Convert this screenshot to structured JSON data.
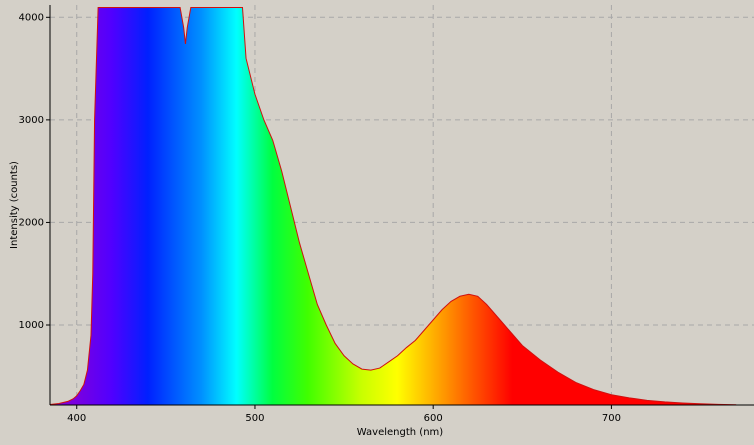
{
  "chart_data": {
    "type": "area",
    "x_label": "Wavelength (nm)",
    "y_label": "Intensity (counts)",
    "x": [
      385,
      390,
      395,
      398,
      400,
      402,
      404,
      406,
      408,
      409,
      410,
      412,
      420,
      440,
      455,
      458,
      460,
      461,
      462,
      464,
      470,
      480,
      490,
      493,
      495,
      500,
      505,
      510,
      515,
      520,
      525,
      530,
      535,
      540,
      545,
      550,
      555,
      560,
      565,
      570,
      575,
      580,
      585,
      590,
      595,
      600,
      605,
      610,
      615,
      620,
      625,
      630,
      635,
      640,
      645,
      650,
      660,
      670,
      680,
      690,
      700,
      710,
      720,
      730,
      740,
      750,
      760,
      770
    ],
    "series": [
      {
        "color": "#d01010",
        "values": [
          225,
          235,
          255,
          280,
          310,
          360,
          420,
          560,
          900,
          1500,
          3000,
          4095,
          4095,
          4095,
          4095,
          4095,
          3900,
          3740,
          3900,
          4095,
          4095,
          4095,
          4095,
          4095,
          3600,
          3250,
          3000,
          2800,
          2500,
          2150,
          1800,
          1500,
          1200,
          1000,
          820,
          700,
          620,
          570,
          560,
          580,
          640,
          700,
          780,
          850,
          950,
          1050,
          1150,
          1230,
          1280,
          1300,
          1280,
          1200,
          1100,
          1000,
          900,
          800,
          660,
          540,
          440,
          370,
          320,
          290,
          265,
          250,
          240,
          232,
          226,
          222
        ]
      }
    ],
    "xlim": [
      385,
      780
    ],
    "ylim": [
      220,
      4120
    ],
    "xticks": [
      400,
      500,
      600,
      700
    ],
    "yticks": [
      1000,
      2000,
      3000,
      4000
    ],
    "grid": true
  }
}
